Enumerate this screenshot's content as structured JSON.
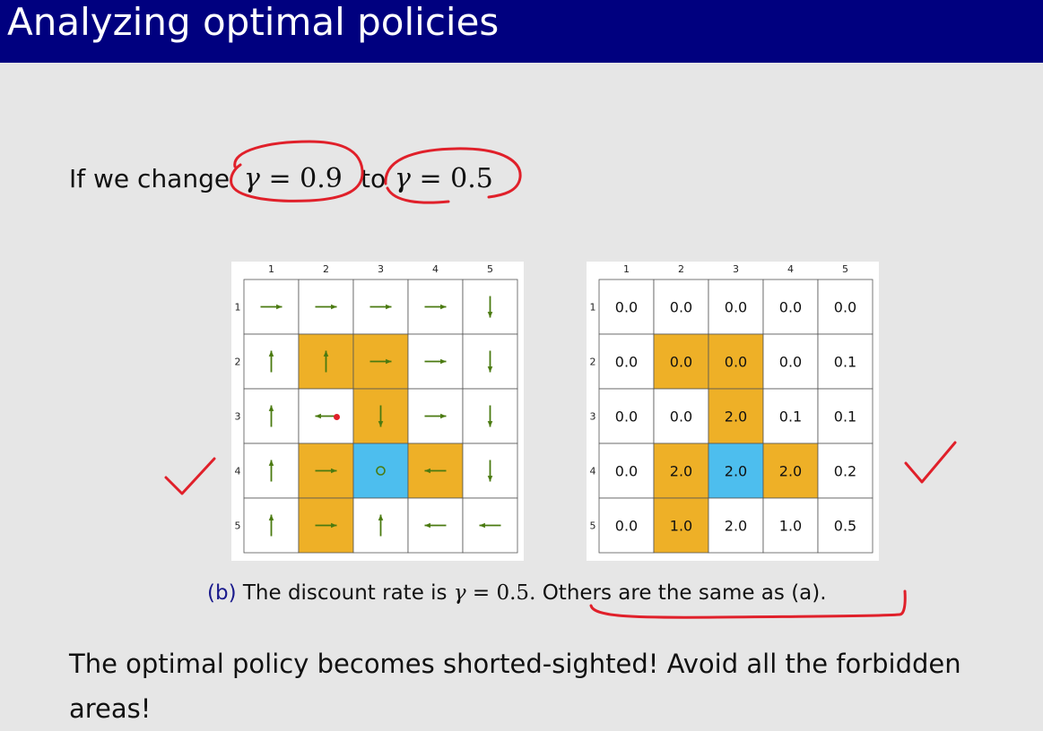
{
  "title": "Analyzing optimal policies",
  "intro": {
    "prefix": "If we change",
    "gamma_from": "= 0.9",
    "to_word": "to",
    "gamma_to": "= 0.5",
    "gamma_symbol": "γ"
  },
  "grid_labels": {
    "cols": [
      "1",
      "2",
      "3",
      "4",
      "5"
    ],
    "rows": [
      "1",
      "2",
      "3",
      "4",
      "5"
    ]
  },
  "colors": {
    "forbidden": "#eeb027",
    "target": "#4dbeee",
    "arrow": "#4a7a10",
    "ink": "#e0202a",
    "title_bg": "#00007f"
  },
  "cell_types": [
    [
      "normal",
      "normal",
      "normal",
      "normal",
      "normal"
    ],
    [
      "normal",
      "forbidden",
      "forbidden",
      "normal",
      "normal"
    ],
    [
      "normal",
      "normal",
      "forbidden",
      "normal",
      "normal"
    ],
    [
      "normal",
      "forbidden",
      "target",
      "forbidden",
      "normal"
    ],
    [
      "normal",
      "forbidden",
      "normal",
      "normal",
      "normal"
    ]
  ],
  "policy": [
    [
      "right",
      "right",
      "right",
      "right",
      "down"
    ],
    [
      "up",
      "up",
      "right",
      "right",
      "down"
    ],
    [
      "up",
      "left",
      "down",
      "right",
      "down"
    ],
    [
      "up",
      "right",
      "stay",
      "left",
      "down"
    ],
    [
      "up",
      "right",
      "up",
      "left",
      "left"
    ]
  ],
  "state_values": [
    [
      "0.0",
      "0.0",
      "0.0",
      "0.0",
      "0.0"
    ],
    [
      "0.0",
      "0.0",
      "0.0",
      "0.0",
      "0.1"
    ],
    [
      "0.0",
      "0.0",
      "2.0",
      "0.1",
      "0.1"
    ],
    [
      "0.0",
      "2.0",
      "2.0",
      "2.0",
      "0.2"
    ],
    [
      "0.0",
      "1.0",
      "2.0",
      "1.0",
      "0.5"
    ]
  ],
  "caption": {
    "label": "(b)",
    "text_before": "The discount rate is",
    "gamma_expr": "= 0.5.",
    "text_after": "Others are the same as (a)."
  },
  "body": "The optimal policy becomes shorted-sighted! Avoid all the forbidden areas!"
}
